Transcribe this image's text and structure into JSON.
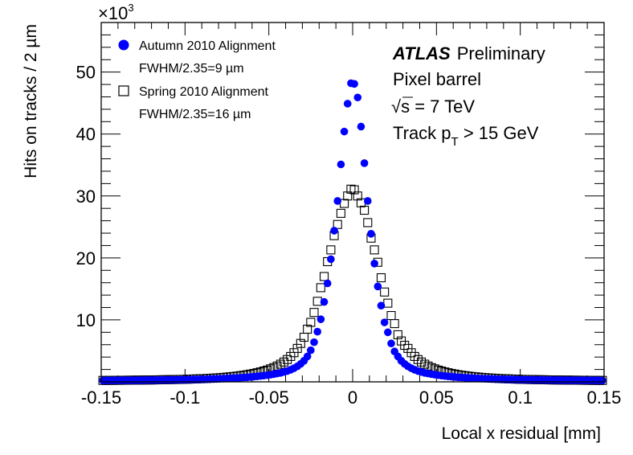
{
  "chart_data": {
    "type": "scatter",
    "xlabel": "Local x residual [mm]",
    "ylabel": "Hits on tracks / 2 µm",
    "y_multiplier": "×10",
    "y_multiplier_exp": "3",
    "xlim": [
      -0.15,
      0.15
    ],
    "ylim": [
      0,
      58
    ],
    "x_ticks": [
      "-0.15",
      "-0.1",
      "-0.05",
      "0",
      "0.05",
      "0.1",
      "0.15"
    ],
    "y_ticks": [
      "10",
      "20",
      "30",
      "40",
      "50"
    ],
    "grid": false,
    "legend_position": "top-left",
    "x_first_bin_center": -0.149,
    "bin_width": 0.002,
    "series": [
      {
        "name": "Autumn 2010 Alignment",
        "subtitle": "FWHM/2.35=9 µm",
        "marker": "filled-circle",
        "color": "#0000ff",
        "values": [
          0.22,
          0.23,
          0.23,
          0.23,
          0.24,
          0.24,
          0.25,
          0.25,
          0.25,
          0.26,
          0.26,
          0.27,
          0.27,
          0.28,
          0.28,
          0.29,
          0.29,
          0.3,
          0.3,
          0.31,
          0.31,
          0.32,
          0.33,
          0.33,
          0.34,
          0.35,
          0.36,
          0.37,
          0.38,
          0.39,
          0.41,
          0.42,
          0.44,
          0.46,
          0.48,
          0.5,
          0.52,
          0.54,
          0.57,
          0.6,
          0.63,
          0.66,
          0.7,
          0.74,
          0.78,
          0.83,
          0.88,
          0.94,
          1.0,
          1.07,
          1.15,
          1.25,
          1.35,
          1.45,
          1.6,
          1.75,
          1.95,
          2.2,
          2.5,
          2.9,
          3.4,
          4.1,
          5.1,
          6.4,
          8.1,
          10.1,
          12.9,
          15.9,
          19.8,
          24.4,
          29.2,
          35.1,
          40.4,
          44.9,
          48.2,
          48.1,
          45.9,
          41.2,
          35.3,
          29.2,
          23.9,
          19.1,
          15.4,
          12.3,
          9.6,
          8.0,
          6.2,
          4.9,
          4.1,
          3.4,
          2.9,
          2.5,
          2.2,
          1.95,
          1.75,
          1.6,
          1.45,
          1.35,
          1.25,
          1.15,
          1.07,
          1.0,
          0.94,
          0.88,
          0.83,
          0.78,
          0.74,
          0.7,
          0.66,
          0.63,
          0.6,
          0.57,
          0.54,
          0.52,
          0.5,
          0.48,
          0.46,
          0.44,
          0.42,
          0.41,
          0.39,
          0.38,
          0.37,
          0.36,
          0.35,
          0.34,
          0.33,
          0.33,
          0.32,
          0.31,
          0.31,
          0.3,
          0.3,
          0.29,
          0.29,
          0.28,
          0.28,
          0.27,
          0.27,
          0.26,
          0.26,
          0.25,
          0.25,
          0.25,
          0.24,
          0.24,
          0.23,
          0.23,
          0.23,
          0.22
        ]
      },
      {
        "name": "Spring 2010 Alignment",
        "subtitle": "FWHM/2.35=16 µm",
        "marker": "open-square",
        "color": "#000000",
        "values": [
          0.23,
          0.23,
          0.24,
          0.24,
          0.25,
          0.25,
          0.26,
          0.26,
          0.27,
          0.27,
          0.28,
          0.28,
          0.29,
          0.3,
          0.3,
          0.31,
          0.32,
          0.33,
          0.34,
          0.35,
          0.36,
          0.37,
          0.38,
          0.39,
          0.4,
          0.42,
          0.44,
          0.46,
          0.48,
          0.5,
          0.52,
          0.55,
          0.58,
          0.61,
          0.64,
          0.68,
          0.72,
          0.77,
          0.82,
          0.87,
          0.93,
          1.0,
          1.07,
          1.15,
          1.25,
          1.35,
          1.47,
          1.6,
          1.75,
          1.9,
          2.1,
          2.3,
          2.55,
          2.85,
          3.2,
          3.6,
          4.1,
          4.7,
          5.4,
          6.2,
          7.2,
          8.5,
          9.6,
          11.2,
          13.0,
          15.2,
          17.0,
          19.4,
          21.3,
          23.6,
          25.4,
          27.2,
          28.8,
          30.0,
          31.1,
          31.0,
          30.0,
          28.9,
          27.7,
          25.7,
          23.2,
          21.3,
          19.3,
          16.8,
          14.5,
          12.7,
          10.7,
          9.4,
          7.6,
          6.6,
          5.9,
          5.4,
          4.7,
          4.1,
          3.6,
          3.2,
          2.85,
          2.55,
          2.3,
          2.1,
          1.9,
          1.75,
          1.6,
          1.47,
          1.35,
          1.25,
          1.15,
          1.07,
          1.0,
          0.93,
          0.87,
          0.82,
          0.77,
          0.72,
          0.68,
          0.64,
          0.61,
          0.58,
          0.55,
          0.52,
          0.5,
          0.48,
          0.46,
          0.44,
          0.42,
          0.4,
          0.39,
          0.38,
          0.37,
          0.36,
          0.35,
          0.34,
          0.33,
          0.32,
          0.31,
          0.3,
          0.3,
          0.29,
          0.28,
          0.28,
          0.27,
          0.27,
          0.26,
          0.26,
          0.25,
          0.25,
          0.24,
          0.24,
          0.23,
          0.23
        ]
      }
    ],
    "annotations": {
      "atlas": "ATLAS",
      "preliminary": "Preliminary",
      "detector": "Pixel barrel",
      "sqrt_s_symbol": "√",
      "energy": "s = 7 TeV",
      "track_prefix": "Track p",
      "track_sub": "T",
      "track_suffix": " > 15 GeV"
    }
  }
}
